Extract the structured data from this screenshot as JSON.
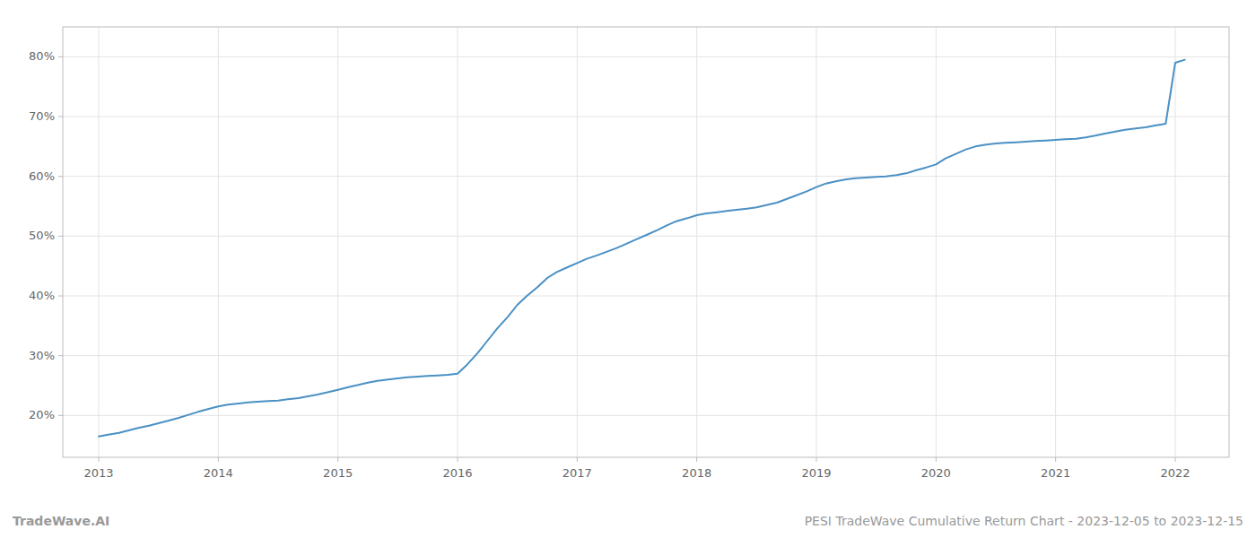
{
  "chart_data": {
    "type": "line",
    "x": [
      2013.0,
      2013.08,
      2013.17,
      2013.25,
      2013.33,
      2013.42,
      2013.5,
      2013.58,
      2013.67,
      2013.75,
      2013.83,
      2013.92,
      2014.0,
      2014.08,
      2014.17,
      2014.25,
      2014.33,
      2014.42,
      2014.5,
      2014.58,
      2014.67,
      2014.75,
      2014.83,
      2014.92,
      2015.0,
      2015.08,
      2015.17,
      2015.25,
      2015.33,
      2015.42,
      2015.5,
      2015.58,
      2015.67,
      2015.75,
      2015.83,
      2015.92,
      2016.0,
      2016.08,
      2016.17,
      2016.25,
      2016.33,
      2016.42,
      2016.5,
      2016.58,
      2016.67,
      2016.75,
      2016.83,
      2016.92,
      2017.0,
      2017.08,
      2017.17,
      2017.25,
      2017.33,
      2017.42,
      2017.5,
      2017.58,
      2017.67,
      2017.75,
      2017.83,
      2017.92,
      2018.0,
      2018.08,
      2018.17,
      2018.25,
      2018.33,
      2018.42,
      2018.5,
      2018.58,
      2018.67,
      2018.75,
      2018.83,
      2018.92,
      2019.0,
      2019.08,
      2019.17,
      2019.25,
      2019.33,
      2019.42,
      2019.5,
      2019.58,
      2019.67,
      2019.75,
      2019.83,
      2019.92,
      2020.0,
      2020.08,
      2020.17,
      2020.25,
      2020.33,
      2020.42,
      2020.5,
      2020.58,
      2020.67,
      2020.75,
      2020.83,
      2020.92,
      2021.0,
      2021.08,
      2021.17,
      2021.25,
      2021.33,
      2021.42,
      2021.5,
      2021.58,
      2021.67,
      2021.75,
      2021.83,
      2021.92,
      2022.0,
      2022.08
    ],
    "values": [
      16.5,
      16.8,
      17.1,
      17.5,
      17.9,
      18.3,
      18.7,
      19.1,
      19.6,
      20.1,
      20.6,
      21.1,
      21.5,
      21.8,
      22.0,
      22.2,
      22.3,
      22.4,
      22.5,
      22.7,
      22.9,
      23.2,
      23.5,
      23.9,
      24.3,
      24.7,
      25.1,
      25.5,
      25.8,
      26.0,
      26.2,
      26.4,
      26.5,
      26.6,
      26.7,
      26.8,
      27.0,
      28.5,
      30.5,
      32.5,
      34.5,
      36.5,
      38.5,
      40.0,
      41.5,
      43.0,
      44.0,
      44.8,
      45.5,
      46.2,
      46.8,
      47.4,
      48.0,
      48.8,
      49.5,
      50.2,
      51.0,
      51.8,
      52.5,
      53.0,
      53.5,
      53.8,
      54.0,
      54.2,
      54.4,
      54.6,
      54.8,
      55.2,
      55.6,
      56.2,
      56.8,
      57.5,
      58.2,
      58.8,
      59.2,
      59.5,
      59.7,
      59.8,
      59.9,
      60.0,
      60.2,
      60.5,
      61.0,
      61.5,
      62.0,
      63.0,
      63.8,
      64.5,
      65.0,
      65.3,
      65.5,
      65.6,
      65.7,
      65.8,
      65.9,
      66.0,
      66.1,
      66.2,
      66.3,
      66.5,
      66.8,
      67.2,
      67.5,
      67.8,
      68.0,
      68.2,
      68.5,
      68.8,
      79.0,
      79.5
    ],
    "color": "#4a90c4",
    "xlim": [
      2012.7,
      2022.45
    ],
    "ylim": [
      13,
      85
    ],
    "xticks": [
      2013,
      2014,
      2015,
      2016,
      2017,
      2018,
      2019,
      2020,
      2021,
      2022
    ],
    "yticks": [
      {
        "value": 20,
        "label": "20%"
      },
      {
        "value": 30,
        "label": "30%"
      },
      {
        "value": 40,
        "label": "40%"
      },
      {
        "value": 50,
        "label": "50%"
      },
      {
        "value": 60,
        "label": "60%"
      },
      {
        "value": 70,
        "label": "70%"
      },
      {
        "value": 80,
        "label": "80%"
      }
    ],
    "grid": true,
    "annotations": [
      "TradeWave.AI",
      "PESI TradeWave Cumulative Return Chart - 2023-12-05 to 2023-12-15"
    ]
  }
}
